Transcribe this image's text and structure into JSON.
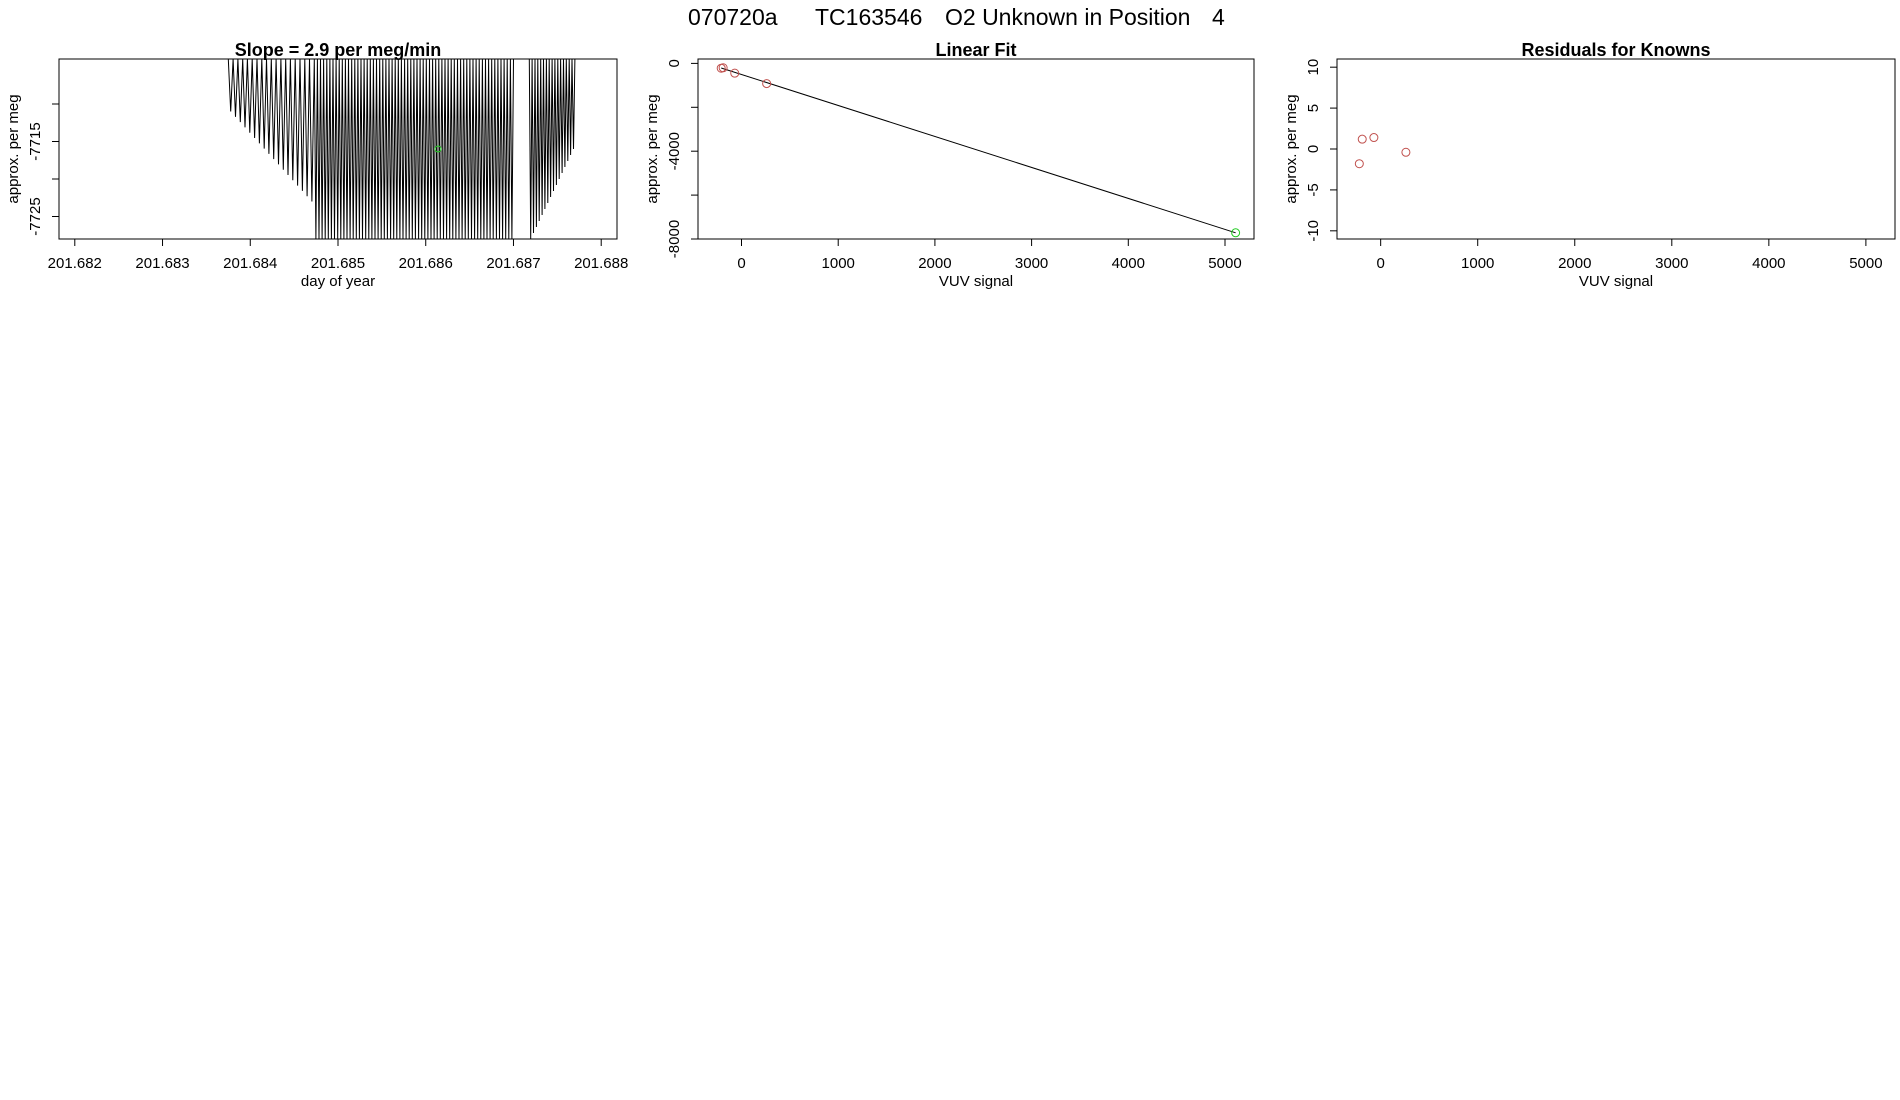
{
  "header": {
    "run_id": "070720a",
    "tank_id": "TC163546",
    "description": "O2 Unknown in Position",
    "position": "4"
  },
  "colors": {
    "known_point": "#c0504d",
    "unknown_point": "#22cc22",
    "line": "#000000"
  },
  "chart_data": [
    {
      "id": "drift",
      "type": "line",
      "title": "Slope =  2.9  per meg/min",
      "xlabel": "day of year",
      "ylabel": "approx. per meg",
      "xlim": [
        201.68182,
        201.68818
      ],
      "ylim": [
        -7728,
        -7704
      ],
      "xticks": [
        201.682,
        201.683,
        201.684,
        201.685,
        201.686,
        201.687,
        201.688
      ],
      "xtick_labels": [
        "201.682",
        "201.683",
        "201.684",
        "201.685",
        "201.686",
        "201.687",
        "201.688"
      ],
      "yticks": [
        -7725,
        -7720,
        -7715,
        -7710
      ],
      "ytick_labels": [
        "-7725",
        "",
        "-7715",
        ""
      ],
      "series": [
        {
          "x_start": 201.68375,
          "x_end": 201.68473,
          "count": 18,
          "y_top": -7704,
          "y_min_from": -7711,
          "y_min_to": -7723,
          "y_floor": -7728
        },
        {
          "x_start": 201.68473,
          "x_end": 201.687,
          "count": 64,
          "y_top": -7704,
          "y_min_from": -7728,
          "y_min_to": -7728,
          "y_floor": -7728
        },
        {
          "x_start": 201.68718,
          "x_end": 201.6877,
          "count": 16,
          "y_top": -7704,
          "y_min_from": -7728,
          "y_min_to": -7716,
          "y_floor": -7728
        }
      ],
      "highlight_points": [
        {
          "x": 201.68614,
          "y": -7716
        }
      ]
    },
    {
      "id": "linear-fit",
      "type": "scatter",
      "title": "Linear Fit",
      "xlabel": "VUV signal",
      "ylabel": "approx. per meg",
      "xlim": [
        -450,
        5300
      ],
      "ylim": [
        -8000,
        200
      ],
      "xticks": [
        0,
        1000,
        2000,
        3000,
        4000,
        5000
      ],
      "xtick_labels": [
        "0",
        "1000",
        "2000",
        "3000",
        "4000",
        "5000"
      ],
      "yticks": [
        0,
        -2000,
        -4000,
        -6000,
        -8000
      ],
      "ytick_labels": [
        "0",
        "",
        "-4000",
        "",
        "-8000"
      ],
      "known_points": [
        {
          "x": -210,
          "y": -220
        },
        {
          "x": -190,
          "y": -200
        },
        {
          "x": -70,
          "y": -445
        },
        {
          "x": 260,
          "y": -920
        }
      ],
      "unknown_points": [
        {
          "x": 5110,
          "y": -7718
        }
      ],
      "fit_line": {
        "x": [
          -210,
          5110
        ],
        "y": [
          -210,
          -7718
        ]
      }
    },
    {
      "id": "residuals",
      "type": "scatter",
      "title": "Residuals for Knowns",
      "xlabel": "VUV signal",
      "ylabel": "approx. per meg",
      "xlim": [
        -450,
        5300
      ],
      "ylim": [
        -11,
        11
      ],
      "xticks": [
        0,
        1000,
        2000,
        3000,
        4000,
        5000
      ],
      "xtick_labels": [
        "0",
        "1000",
        "2000",
        "3000",
        "4000",
        "5000"
      ],
      "yticks": [
        10,
        5,
        0,
        -5,
        -10
      ],
      "ytick_labels": [
        "10",
        "5",
        "0",
        "-5",
        "-10"
      ],
      "points": [
        {
          "x": -220,
          "y": -1.8
        },
        {
          "x": -190,
          "y": 1.2
        },
        {
          "x": -70,
          "y": 1.4
        },
        {
          "x": 260,
          "y": -0.4
        }
      ]
    }
  ]
}
